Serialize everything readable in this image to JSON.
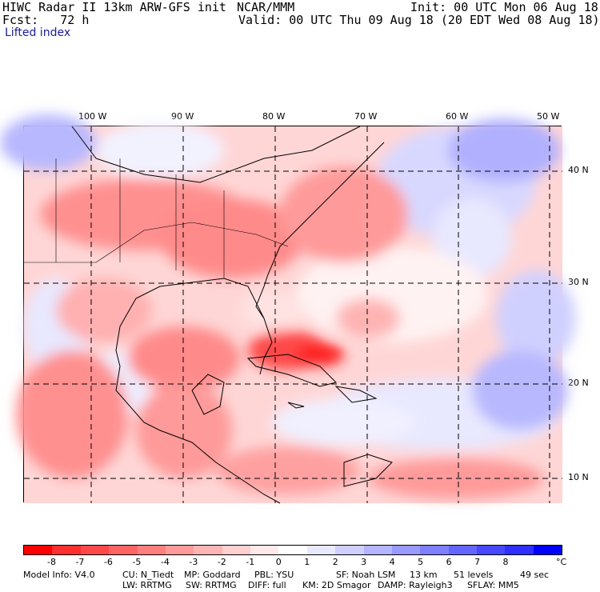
{
  "header": {
    "title": "HIWC Radar II 13km ARW-GFS init",
    "center": "NCAR/MMM",
    "init": "Init: 00 UTC Mon 06 Aug 18",
    "fcst": "Fcst:   72 h",
    "valid": "Valid: 00 UTC Thu 09 Aug 18 (20 EDT Wed 08 Aug 18)",
    "variable": "Lifted index"
  },
  "map": {
    "lon_labels": [
      "100 W",
      "90 W",
      "80 W",
      "70 W",
      "60 W",
      "50 W"
    ],
    "lat_labels": [
      "40 N",
      "30 N",
      "20 N",
      "10 N"
    ]
  },
  "colorbar": {
    "unit": "°C",
    "ticks": [
      "-8",
      "-7",
      "-6",
      "-5",
      "-4",
      "-3",
      "-2",
      "-1",
      "0",
      "1",
      "2",
      "3",
      "4",
      "5",
      "6",
      "7",
      "8"
    ],
    "colors": [
      "#ff0000",
      "#ff2f2f",
      "#ff4848",
      "#ff6464",
      "#ff7f7f",
      "#ff9a9a",
      "#ffb4b4",
      "#ffd0d0",
      "#ffe9e9",
      "#ffffff",
      "#e8e8ff",
      "#d0d0ff",
      "#b4b4ff",
      "#9a9aff",
      "#7f7fff",
      "#6464ff",
      "#4848ff",
      "#2f2fff",
      "#0000ff"
    ]
  },
  "footer": {
    "model_info": "Model Info: V4.0",
    "cu": "CU: N_Tiedt",
    "mp": "MP: Goddard",
    "pbl": "PBL: YSU",
    "sf": "SF: Noah LSM",
    "res": "13 km",
    "levels": "51 levels",
    "dt": "49 sec",
    "lw": "LW: RRTMG",
    "sw": "SW: RRTMG",
    "diff": "DIFF: full",
    "km": "KM: 2D Smagor",
    "damp": "DAMP: Rayleigh3",
    "sflay": "SFLAY: MM5"
  }
}
